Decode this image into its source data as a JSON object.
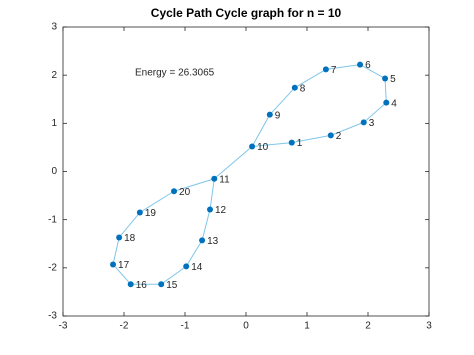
{
  "chart_data": {
    "type": "graph",
    "title": "Cycle Path Cycle graph for n = 10",
    "annotation": "Energy =  26.3065",
    "labels": [
      "1",
      "2",
      "3",
      "4",
      "5",
      "6",
      "7",
      "8",
      "9",
      "10",
      "11",
      "12",
      "13",
      "14",
      "15",
      "16",
      "17",
      "18",
      "19",
      "20"
    ],
    "x": [
      0.75,
      1.39,
      1.93,
      2.3,
      2.28,
      1.87,
      1.31,
      0.8,
      0.39,
      0.1,
      -0.52,
      -0.59,
      -0.72,
      -0.98,
      -1.39,
      -1.89,
      -2.18,
      -2.08,
      -1.74,
      -1.18
    ],
    "y": [
      0.6,
      0.75,
      1.02,
      1.43,
      1.93,
      2.22,
      2.12,
      1.74,
      1.18,
      0.52,
      -0.15,
      -0.79,
      -1.43,
      -1.97,
      -2.34,
      -2.34,
      -1.93,
      -1.37,
      -0.85,
      -0.41
    ],
    "edges": [
      [
        0,
        1
      ],
      [
        1,
        2
      ],
      [
        2,
        3
      ],
      [
        3,
        4
      ],
      [
        4,
        5
      ],
      [
        5,
        6
      ],
      [
        6,
        7
      ],
      [
        7,
        8
      ],
      [
        8,
        9
      ],
      [
        9,
        0
      ],
      [
        9,
        10
      ],
      [
        10,
        11
      ],
      [
        11,
        12
      ],
      [
        12,
        13
      ],
      [
        13,
        14
      ],
      [
        14,
        15
      ],
      [
        15,
        16
      ],
      [
        16,
        17
      ],
      [
        17,
        18
      ],
      [
        18,
        19
      ],
      [
        19,
        10
      ]
    ],
    "node_color": "#0072bd",
    "edge_color": "#7fc6e8",
    "xlim": [
      -3,
      3
    ],
    "ylim": [
      -3,
      3
    ],
    "xticks": [
      -3,
      -2,
      -1,
      0,
      1,
      2,
      3
    ],
    "yticks": [
      -3,
      -2,
      -1,
      0,
      1,
      2,
      3
    ]
  }
}
